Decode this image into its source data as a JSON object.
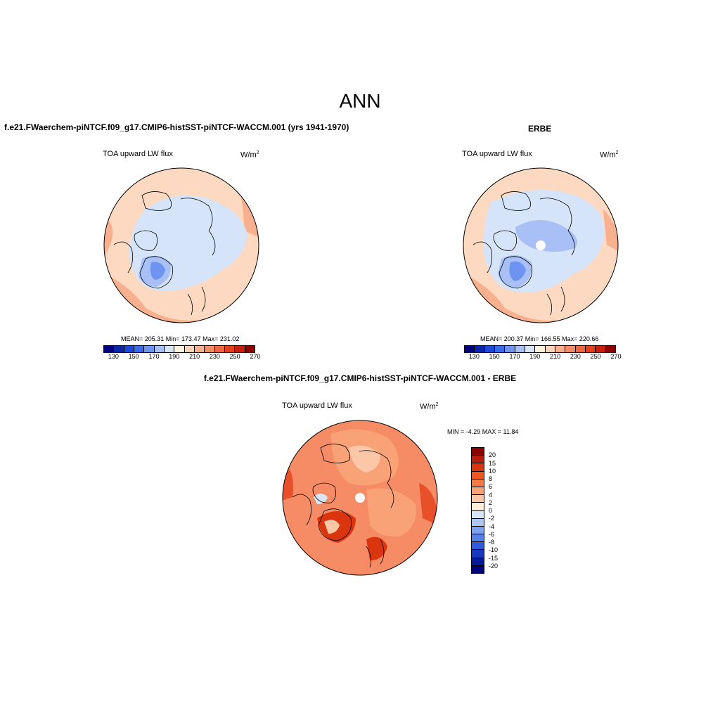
{
  "main_title": "ANN",
  "panels": {
    "model": {
      "run_title": "f.e21.FWaerchem-piNTCF.f09_g17.CMIP6-histSST-piNTCF-WACCM.001 (yrs 1941-1970)",
      "variable": "TOA upward LW flux",
      "units": "W/m",
      "units_sup": "2",
      "stats": "MEAN= 205.31   Min= 173.47   Max= 231.02"
    },
    "obs": {
      "run_title": "ERBE",
      "variable": "TOA upward LW flux",
      "units": "W/m",
      "units_sup": "2",
      "stats": "MEAN= 200.37   Min= 166.55   Max= 220.66"
    },
    "diff": {
      "run_title": "f.e21.FWaerchem-piNTCF.f09_g17.CMIP6-histSST-piNTCF-WACCM.001 - ERBE",
      "variable": "TOA upward LW flux",
      "units": "W/m",
      "units_sup": "2",
      "stats": "MIN =  -4.29 MAX =  11.84"
    }
  },
  "abs_colorbar": {
    "colors": [
      "#00007f",
      "#0b27a8",
      "#1d49d6",
      "#3a6ae8",
      "#6e93f0",
      "#a8c0f5",
      "#d6e4fa",
      "#fff0dc",
      "#fcd2b8",
      "#f9b08e",
      "#f58c66",
      "#ef6742",
      "#e33f1f",
      "#c4200e",
      "#8b0000"
    ],
    "labels": [
      "130",
      "150",
      "170",
      "190",
      "210",
      "230",
      "250",
      "270"
    ]
  },
  "diff_colorbar": {
    "colors": [
      "#8b0000",
      "#b81c0a",
      "#d9350f",
      "#f0541f",
      "#f57a46",
      "#f9a277",
      "#fcc7a8",
      "#ffeedd",
      "#d8e6fb",
      "#adc5f5",
      "#7ea1ef",
      "#5580ea",
      "#3059dd",
      "#1838c0",
      "#001a9a",
      "#00007f"
    ],
    "labels": [
      "20",
      "15",
      "10",
      "8",
      "6",
      "4",
      "2",
      "0",
      "-2",
      "-4",
      "-6",
      "-8",
      "-10",
      "-15",
      "-20"
    ]
  },
  "colors": {
    "warm_light": "#fcd9c0",
    "warm_mid": "#f9b08e",
    "cool_light": "#d6e4fa",
    "cool_mid": "#a8c0f5",
    "cool_dark": "#6e93f0",
    "diff_bg": "#f58c66",
    "diff_strong": "#e8502a"
  }
}
